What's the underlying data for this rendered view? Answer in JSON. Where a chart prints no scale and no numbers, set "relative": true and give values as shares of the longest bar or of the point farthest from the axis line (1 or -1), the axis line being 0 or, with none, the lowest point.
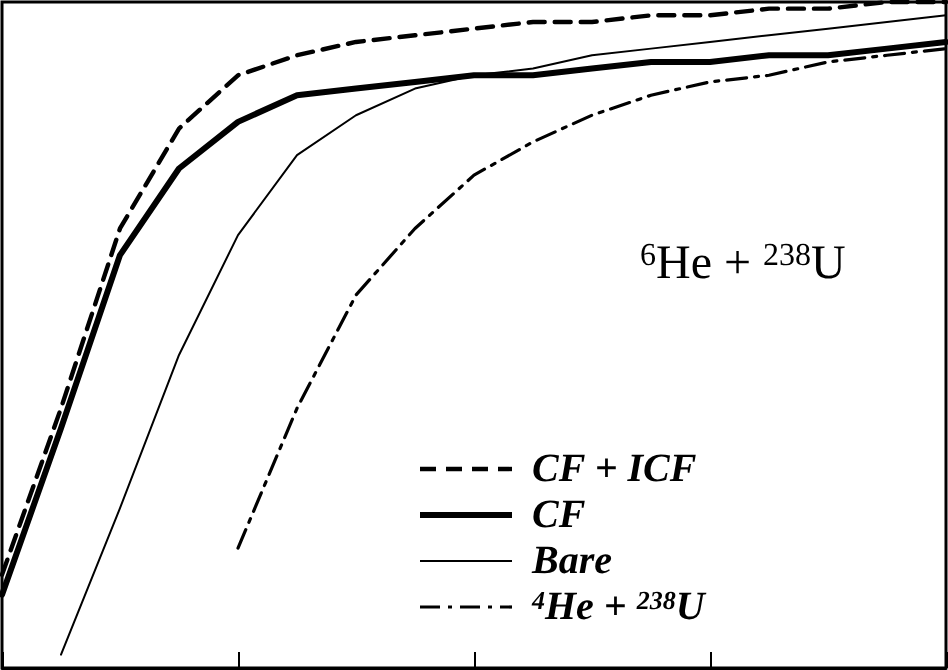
{
  "chart_data": {
    "type": "line",
    "relative": true,
    "tick_labels": false,
    "grid": false,
    "legend": "bottom right",
    "marker": "none",
    "annotations": [
      "$^{6}$He + $^{238}$U"
    ],
    "categories": [
      null,
      null,
      null,
      null,
      null,
      null,
      null,
      null,
      null,
      null,
      null,
      null,
      null,
      null,
      null,
      null,
      null
    ],
    "series": [
      {
        "name": "CF + ICF",
        "color": "#000000",
        "line_style": "dashed",
        "values": [
          0.14,
          0.39,
          0.66,
          0.81,
          0.89,
          0.92,
          0.94,
          0.95,
          0.96,
          0.97,
          0.97,
          0.98,
          0.98,
          0.99,
          0.99,
          1.0,
          1.0
        ]
      },
      {
        "name": "CF",
        "color": "#000000",
        "line_style": "solid",
        "values": [
          0.11,
          0.36,
          0.62,
          0.75,
          0.82,
          0.86,
          0.87,
          0.88,
          0.89,
          0.89,
          0.9,
          0.91,
          0.91,
          0.92,
          0.92,
          0.93,
          0.94
        ]
      },
      {
        "name": "Bare",
        "color": "#000000",
        "line_style": "solid",
        "values": [
          null,
          0.02,
          0.24,
          0.47,
          0.65,
          0.77,
          0.83,
          0.87,
          0.89,
          0.9,
          0.92,
          0.93,
          0.94,
          0.95,
          0.96,
          0.97,
          0.98
        ]
      },
      {
        "name": "$^{4}$He + $^{238}$U",
        "color": "#000000",
        "line_style": "dashdot",
        "values": [
          null,
          null,
          null,
          null,
          0.18,
          0.39,
          0.56,
          0.66,
          0.74,
          0.79,
          0.83,
          0.86,
          0.88,
          0.89,
          0.91,
          0.92,
          0.93
        ]
      }
    ]
  }
}
